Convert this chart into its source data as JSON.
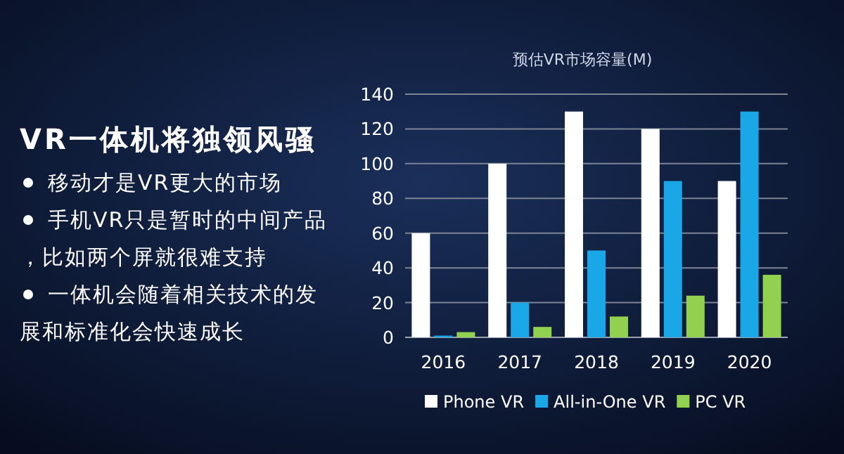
{
  "chart_data": [
    {
      "type": "other",
      "title": "VR一体机将独领风骚",
      "annotations": [
        "移动才是VR更大的市场",
        "手机VR只是暂时的中间产品，比如两个屏就很难支持",
        "一体机会随着相关技术的发展和标准化会快速成长"
      ]
    },
    {
      "type": "bar",
      "title": "预估VR市场容量(M)",
      "categories": [
        "2016",
        "2017",
        "2018",
        "2019",
        "2020"
      ],
      "series": [
        {
          "name": "Phone VR",
          "color": "#ffffff",
          "values": [
            60,
            100,
            130,
            120,
            90
          ]
        },
        {
          "name": "All-in-One VR",
          "color": "#1aa7e8",
          "values": [
            1,
            20,
            50,
            90,
            130
          ]
        },
        {
          "name": "PC VR",
          "color": "#92d050",
          "values": [
            3,
            6,
            12,
            24,
            36
          ]
        }
      ],
      "ylim": [
        0,
        140
      ],
      "yticks": [
        0,
        20,
        40,
        60,
        80,
        100,
        120,
        140
      ],
      "grid": "y",
      "legend": "bottom"
    }
  ]
}
